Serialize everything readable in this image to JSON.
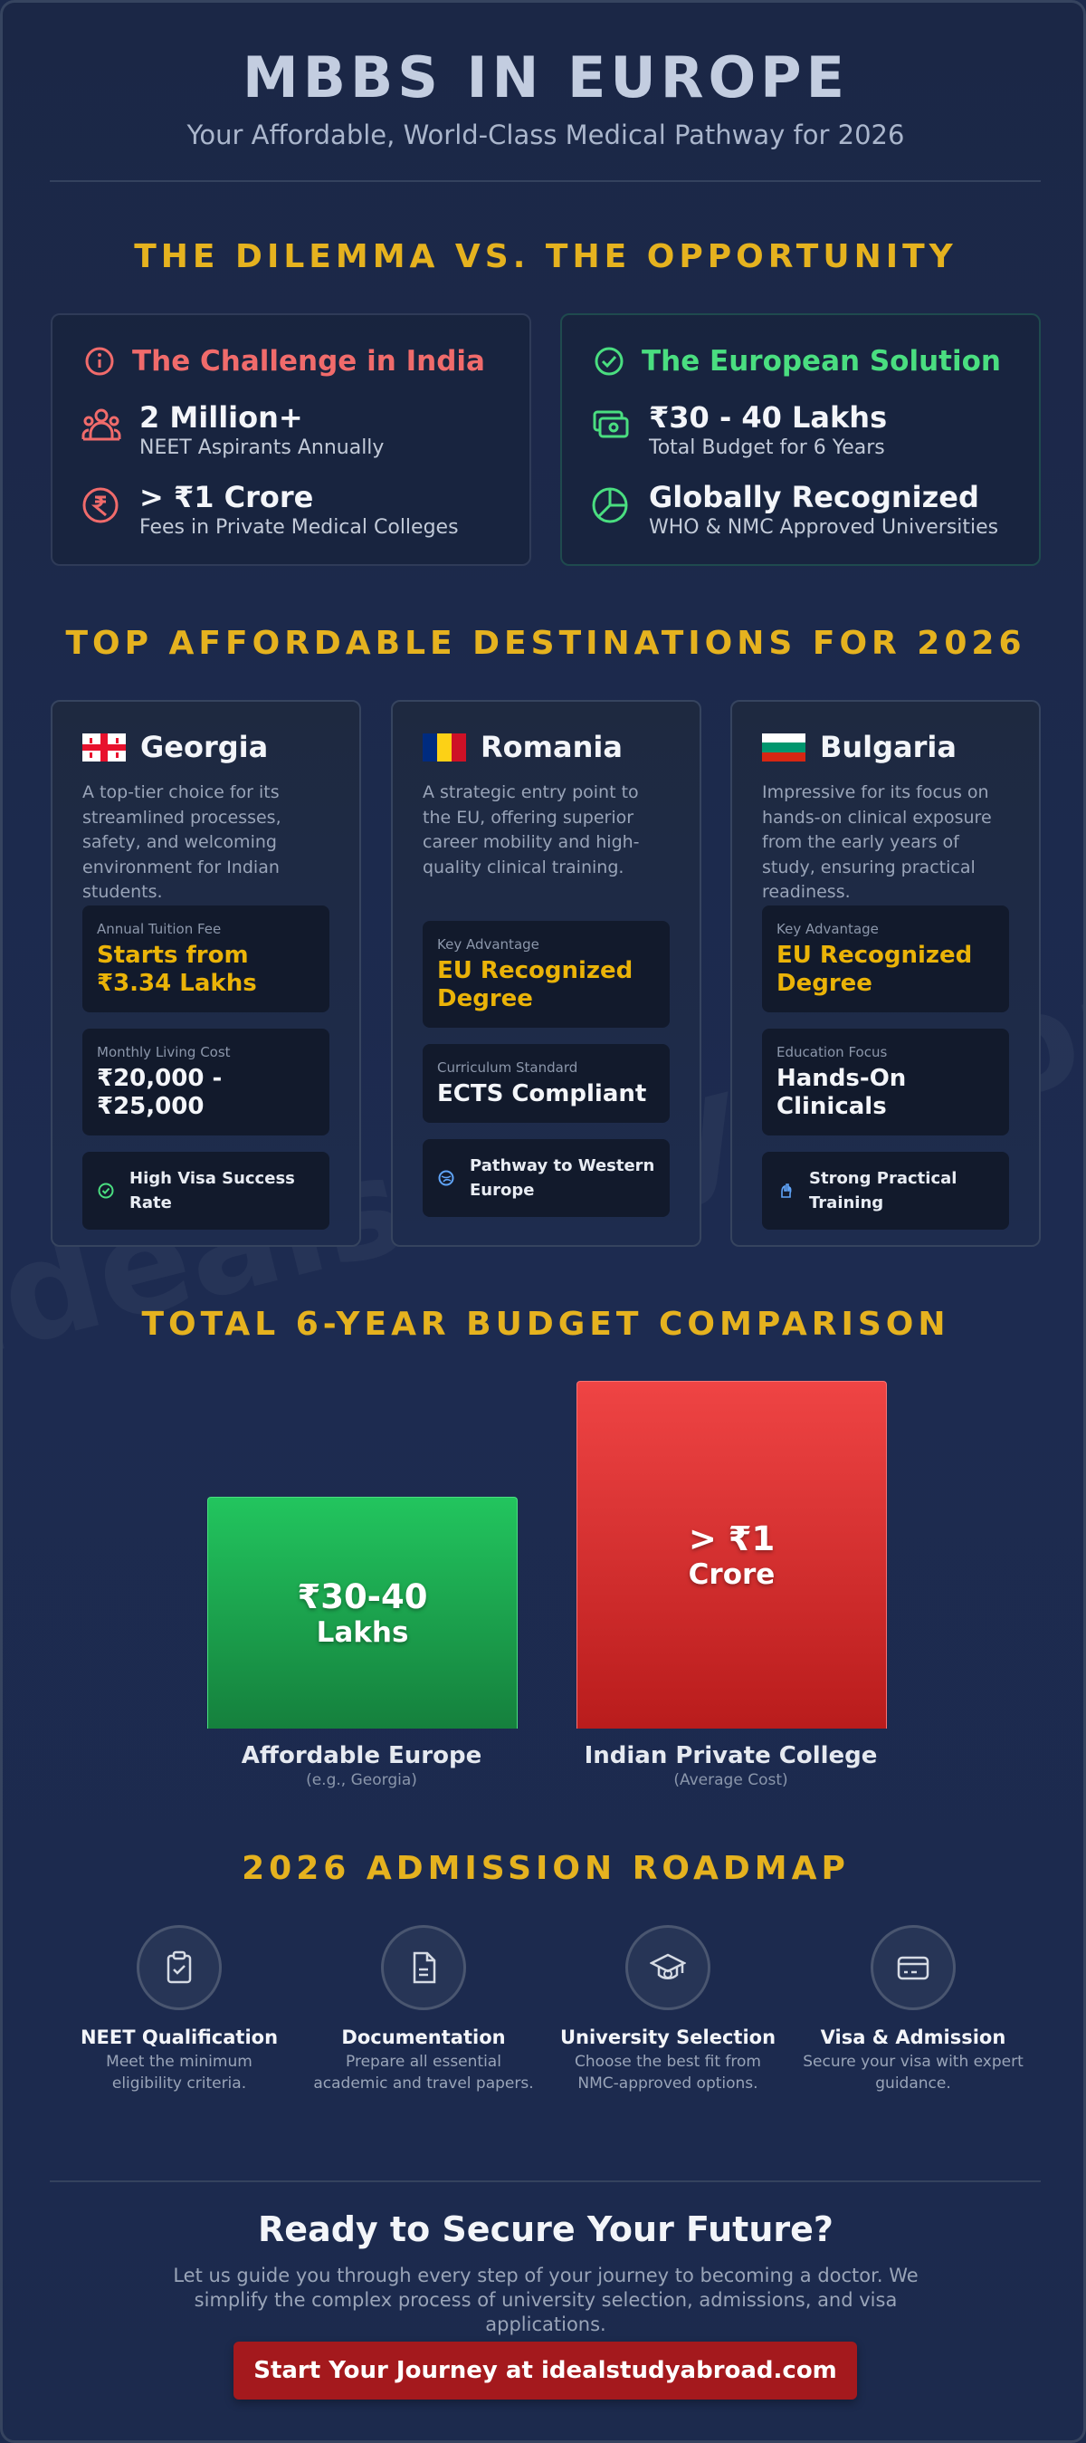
{
  "header": {
    "title": "MBBS IN EUROPE",
    "subtitle": "Your Affordable, World-Class Medical Pathway for 2026"
  },
  "watermark": "idealstudyabroad",
  "dilemma": {
    "heading": "THE DILEMMA VS. THE OPPORTUNITY",
    "cards": [
      {
        "title": "The Challenge in India",
        "items": [
          {
            "value": "2 Million+",
            "label": "NEET Aspirants Annually"
          },
          {
            "value": "> ₹1 Crore",
            "label": "Fees in Private Medical Colleges"
          }
        ]
      },
      {
        "title": "The European Solution",
        "items": [
          {
            "value": "₹30 - 40 Lakhs",
            "label": "Total Budget for 6 Years"
          },
          {
            "value": "Globally Recognized",
            "label": "WHO & NMC Approved Universities"
          }
        ]
      }
    ]
  },
  "destinations": {
    "heading": "TOP AFFORDABLE DESTINATIONS FOR 2026",
    "cards": [
      {
        "name": "Georgia",
        "description": "A top-tier choice for its streamlined processes, safety, and welcoming environment for Indian students.",
        "facts": [
          {
            "label": "Annual Tuition Fee",
            "value": "Starts from ₹3.34 Lakhs"
          },
          {
            "label": "Monthly Living Cost",
            "value": "₹20,000 - ₹25,000"
          }
        ],
        "highlight": "High Visa Success Rate"
      },
      {
        "name": "Romania",
        "description": "A strategic entry point to the EU, offering superior career mobility and high-quality clinical training.",
        "facts": [
          {
            "label": "Key Advantage",
            "value": "EU Recognized Degree"
          },
          {
            "label": "Curriculum Standard",
            "value": "ECTS Compliant"
          }
        ],
        "highlight": "Pathway to Western Europe"
      },
      {
        "name": "Bulgaria",
        "description": "Impressive for its focus on hands-on clinical exposure from the early years of study, ensuring practical readiness.",
        "facts": [
          {
            "label": "Key Advantage",
            "value": "EU Recognized Degree"
          },
          {
            "label": "Education Focus",
            "value": "Hands-On Clinicals"
          }
        ],
        "highlight": "Strong Practical Training"
      }
    ]
  },
  "budget": {
    "heading": "TOTAL 6-YEAR BUDGET COMPARISON",
    "bars": [
      {
        "amount": "₹30-40",
        "unit": "Lakhs",
        "label": "Affordable Europe",
        "note": "(e.g., Georgia)"
      },
      {
        "amount": "> ₹1",
        "unit": "Crore",
        "label": "Indian Private College",
        "note": "(Average Cost)"
      }
    ]
  },
  "roadmap": {
    "heading": "2026 ADMISSION ROADMAP",
    "steps": [
      {
        "title": "NEET Qualification",
        "description": "Meet the minimum eligibility criteria."
      },
      {
        "title": "Documentation",
        "description": "Prepare all essential academic and travel papers."
      },
      {
        "title": "University Selection",
        "description": "Choose the best fit from NMC-approved options."
      },
      {
        "title": "Visa & Admission",
        "description": "Secure your visa with expert guidance."
      }
    ]
  },
  "cta": {
    "title": "Ready to Secure Your Future?",
    "text": "Let us guide you through every step of your journey to becoming a doctor. We simplify the complex process of university selection, admissions, and visa applications.",
    "button": "Start Your Journey at idealstudyabroad.com"
  }
}
